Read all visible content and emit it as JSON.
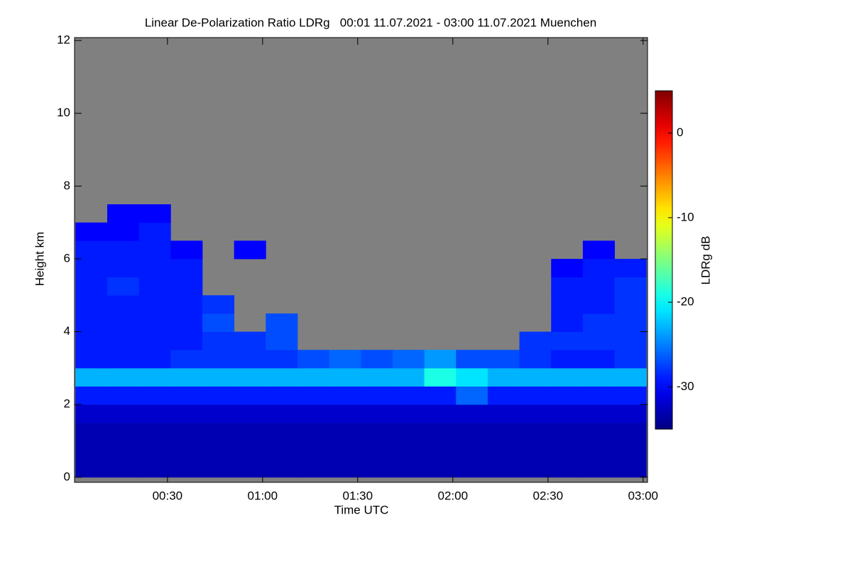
{
  "chart_data": {
    "type": "heatmap",
    "title": "Linear De-Polarization Ratio LDRg   00:01 11.07.2021 - 03:00 11.07.2021 Muenchen",
    "xlabel": "Time UTC",
    "ylabel": "Height km",
    "colorbar_label": "LDRg dB",
    "xlim": [
      0.7,
      181.4
    ],
    "xticks": [
      {
        "value": 30,
        "label": "00:30"
      },
      {
        "value": 60,
        "label": "01:00"
      },
      {
        "value": 90,
        "label": "01:30"
      },
      {
        "value": 120,
        "label": "02:00"
      },
      {
        "value": 150,
        "label": "02:30"
      },
      {
        "value": 180,
        "label": "03:00"
      }
    ],
    "ylim": [
      -0.14,
      12.08
    ],
    "yticks": [
      0,
      2,
      4,
      6,
      8,
      10,
      12
    ],
    "clim": [
      -35,
      5
    ],
    "cticks": [
      0,
      -10,
      -20,
      -30
    ],
    "colormap": "jet",
    "nodata_color": "#808080",
    "xbins": [
      1,
      11,
      21,
      31,
      41,
      51,
      61,
      71,
      81,
      91,
      101,
      111,
      121,
      131,
      141,
      151,
      161,
      171,
      181
    ],
    "ybins": [
      0,
      0.5,
      1,
      1.5,
      2,
      2.5,
      3,
      3.5,
      4,
      4.5,
      5,
      5.5,
      6,
      6.5,
      7,
      7.5,
      8
    ],
    "z": [
      [
        -33,
        -33,
        -33,
        -33,
        -33,
        -33,
        -33,
        -33,
        -33,
        -33,
        -33,
        -33,
        -33,
        -33,
        -33,
        -33,
        -33,
        -33
      ],
      [
        -33,
        -33,
        -33,
        -33,
        -33,
        -33,
        -33,
        -33,
        -33,
        -33,
        -33,
        -33,
        -33,
        -33,
        -33,
        -33,
        -33,
        -33
      ],
      [
        -33,
        -33,
        -33,
        -33,
        -33,
        -33,
        -33,
        -33,
        -33,
        -33,
        -33,
        -33,
        -33,
        -33,
        -33,
        -33,
        -33,
        -33
      ],
      [
        -32,
        -32,
        -32,
        -32,
        -32,
        -32,
        -32,
        -32,
        -32,
        -32,
        -32,
        -32,
        -32,
        -32,
        -32,
        -32,
        -32,
        -32
      ],
      [
        -29,
        -29,
        -29,
        -29,
        -29,
        -29,
        -29,
        -29,
        -29,
        -29,
        -29,
        -29,
        -26,
        -29,
        -29,
        -29,
        -29,
        -29
      ],
      [
        -23,
        -23,
        -23,
        -23,
        -23,
        -23,
        -23,
        -23,
        -23,
        -23,
        -23,
        -19,
        -21,
        -23,
        -23,
        -23,
        -23,
        -23
      ],
      [
        -29,
        -29,
        -29,
        -28,
        -28,
        -28,
        -28,
        -27,
        -26,
        -27,
        -26,
        -24,
        -27,
        -27,
        -28,
        -29,
        -29,
        -28
      ],
      [
        -29,
        -29,
        -29,
        -29,
        -28,
        -28,
        -27,
        null,
        null,
        null,
        null,
        null,
        null,
        null,
        -28,
        -28,
        -28,
        -28
      ],
      [
        -29,
        -29,
        -29,
        -29,
        -27,
        null,
        -27,
        null,
        null,
        null,
        null,
        null,
        null,
        null,
        null,
        -29,
        -28,
        -28
      ],
      [
        -29,
        -29,
        -29,
        -29,
        -28,
        null,
        null,
        null,
        null,
        null,
        null,
        null,
        null,
        null,
        null,
        -29,
        -29,
        -28
      ],
      [
        -29,
        -28,
        -29,
        -29,
        null,
        null,
        null,
        null,
        null,
        null,
        null,
        null,
        null,
        null,
        null,
        -29,
        -29,
        -28
      ],
      [
        -29,
        -29,
        -29,
        -29,
        null,
        null,
        null,
        null,
        null,
        null,
        null,
        null,
        null,
        null,
        null,
        -30,
        -29,
        -29
      ],
      [
        -29,
        -29,
        -29,
        -30,
        null,
        -30,
        null,
        null,
        null,
        null,
        null,
        null,
        null,
        null,
        null,
        null,
        -30,
        null
      ],
      [
        -30,
        -30,
        -29,
        null,
        null,
        null,
        null,
        null,
        null,
        null,
        null,
        null,
        null,
        null,
        null,
        null,
        null,
        null
      ],
      [
        null,
        -30,
        -30,
        null,
        null,
        null,
        null,
        null,
        null,
        null,
        null,
        null,
        null,
        null,
        null,
        null,
        null,
        null
      ],
      [
        null,
        null,
        null,
        null,
        null,
        null,
        null,
        null,
        null,
        null,
        null,
        null,
        null,
        null,
        null,
        null,
        null,
        null
      ]
    ]
  }
}
